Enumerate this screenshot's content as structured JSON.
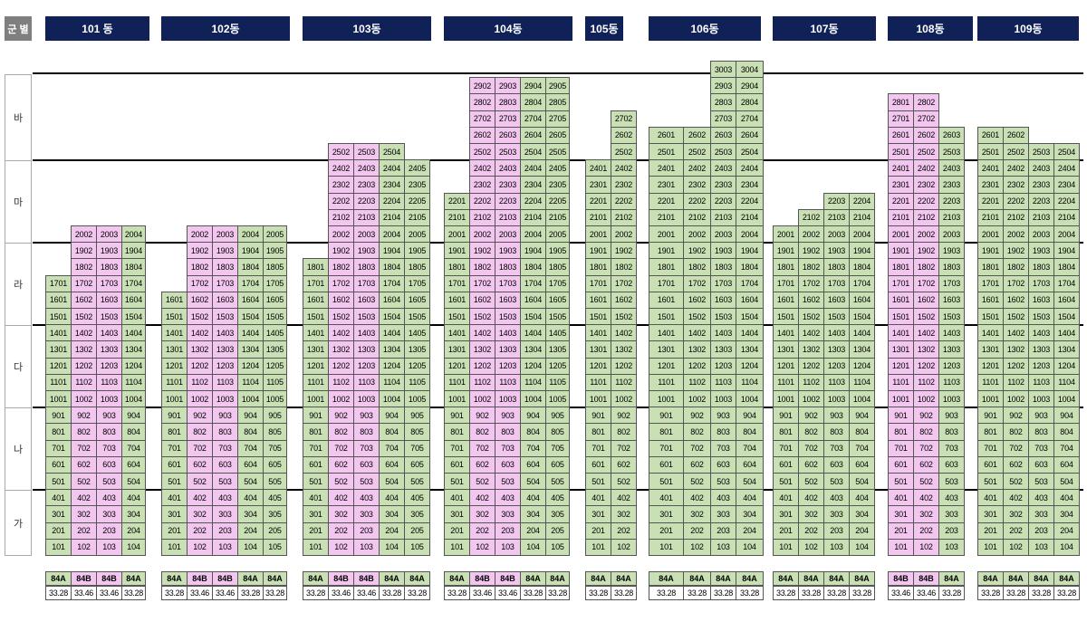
{
  "group_header": "군 별",
  "bands": [
    {
      "label": "바"
    },
    {
      "label": "마"
    },
    {
      "label": "라"
    },
    {
      "label": "다"
    },
    {
      "label": "나"
    },
    {
      "label": "가"
    }
  ],
  "colors": {
    "header_bg": "#0f2157",
    "type_a": "#c9dfb4",
    "type_b": "#f3c6f0"
  },
  "buildings": [
    {
      "name": "101 동",
      "types": [
        "84A",
        "84B",
        "84B",
        "84A"
      ],
      "areas": [
        "33.28",
        "33.46",
        "33.46",
        "33.28"
      ],
      "top_floors": [
        17,
        20,
        20,
        20
      ]
    },
    {
      "name": "102동",
      "types": [
        "84A",
        "84B",
        "84B",
        "84A",
        "84A"
      ],
      "areas": [
        "33.28",
        "33.46",
        "33.46",
        "33.28",
        "33.28"
      ],
      "top_floors": [
        16,
        20,
        20,
        20,
        20
      ]
    },
    {
      "name": "103동",
      "types": [
        "84A",
        "84B",
        "84B",
        "84A",
        "84A"
      ],
      "areas": [
        "33.28",
        "33.46",
        "33.46",
        "33.28",
        "33.28"
      ],
      "top_floors": [
        18,
        25,
        25,
        25,
        24
      ]
    },
    {
      "name": "104동",
      "types": [
        "84A",
        "84B",
        "84B",
        "84A",
        "84A"
      ],
      "areas": [
        "33.28",
        "33.46",
        "33.46",
        "33.28",
        "33.28"
      ],
      "top_floors": [
        22,
        29,
        29,
        29,
        29
      ]
    },
    {
      "name": "105동",
      "types": [
        "84A",
        "84A"
      ],
      "areas": [
        "33.28",
        "33.28"
      ],
      "top_floors": [
        24,
        27
      ]
    },
    {
      "name": "106동",
      "types": [
        "84A",
        "84A",
        "84A",
        "84A"
      ],
      "areas": [
        "33.28",
        "33.28",
        "33.28",
        "33.28"
      ],
      "top_floors": [
        26,
        26,
        30,
        30
      ]
    },
    {
      "name": "107동",
      "types": [
        "84A",
        "84A",
        "84A",
        "84A"
      ],
      "areas": [
        "33.28",
        "33.28",
        "33.28",
        "33.28"
      ],
      "top_floors": [
        20,
        21,
        22,
        22
      ]
    },
    {
      "name": "108동",
      "types": [
        "84B",
        "84B",
        "84A"
      ],
      "areas": [
        "33.46",
        "33.46",
        "33.28"
      ],
      "top_floors": [
        28,
        28,
        26
      ]
    },
    {
      "name": "109동",
      "types": [
        "84A",
        "84A",
        "84A",
        "84A"
      ],
      "areas": [
        "33.28",
        "33.28",
        "33.28",
        "33.28"
      ],
      "top_floors": [
        26,
        26,
        25,
        25
      ]
    }
  ]
}
